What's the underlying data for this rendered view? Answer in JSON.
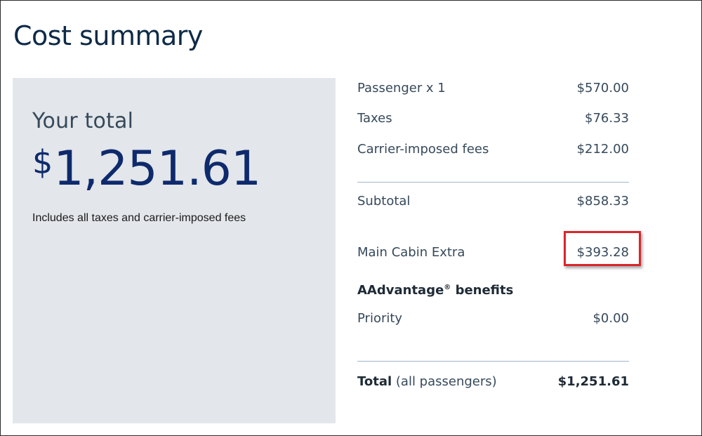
{
  "page": {
    "title": "Cost summary"
  },
  "total_panel": {
    "label": "Your total",
    "currency_symbol": "$",
    "amount": "1,251.61",
    "note": "Includes all taxes and carrier-imposed fees"
  },
  "breakdown": {
    "passenger": {
      "label": "Passenger x 1",
      "amount": "$570.00"
    },
    "taxes": {
      "label": "Taxes",
      "amount": "$76.33"
    },
    "carrier_fees": {
      "label": "Carrier-imposed fees",
      "amount": "$212.00"
    },
    "subtotal": {
      "label": "Subtotal",
      "amount": "$858.33"
    },
    "main_cabin_extra": {
      "label": "Main Cabin Extra",
      "amount": "$393.28"
    },
    "benefits_heading": "AAdvantage",
    "benefits_heading_mark": "®",
    "benefits_heading_suffix": " benefits",
    "priority": {
      "label": "Priority",
      "amount": "$0.00"
    },
    "total": {
      "label_bold": "Total",
      "label_rest": " (all passengers)",
      "amount": "$1,251.61"
    }
  },
  "annotation": {
    "highlight_color": "#d9262b"
  }
}
